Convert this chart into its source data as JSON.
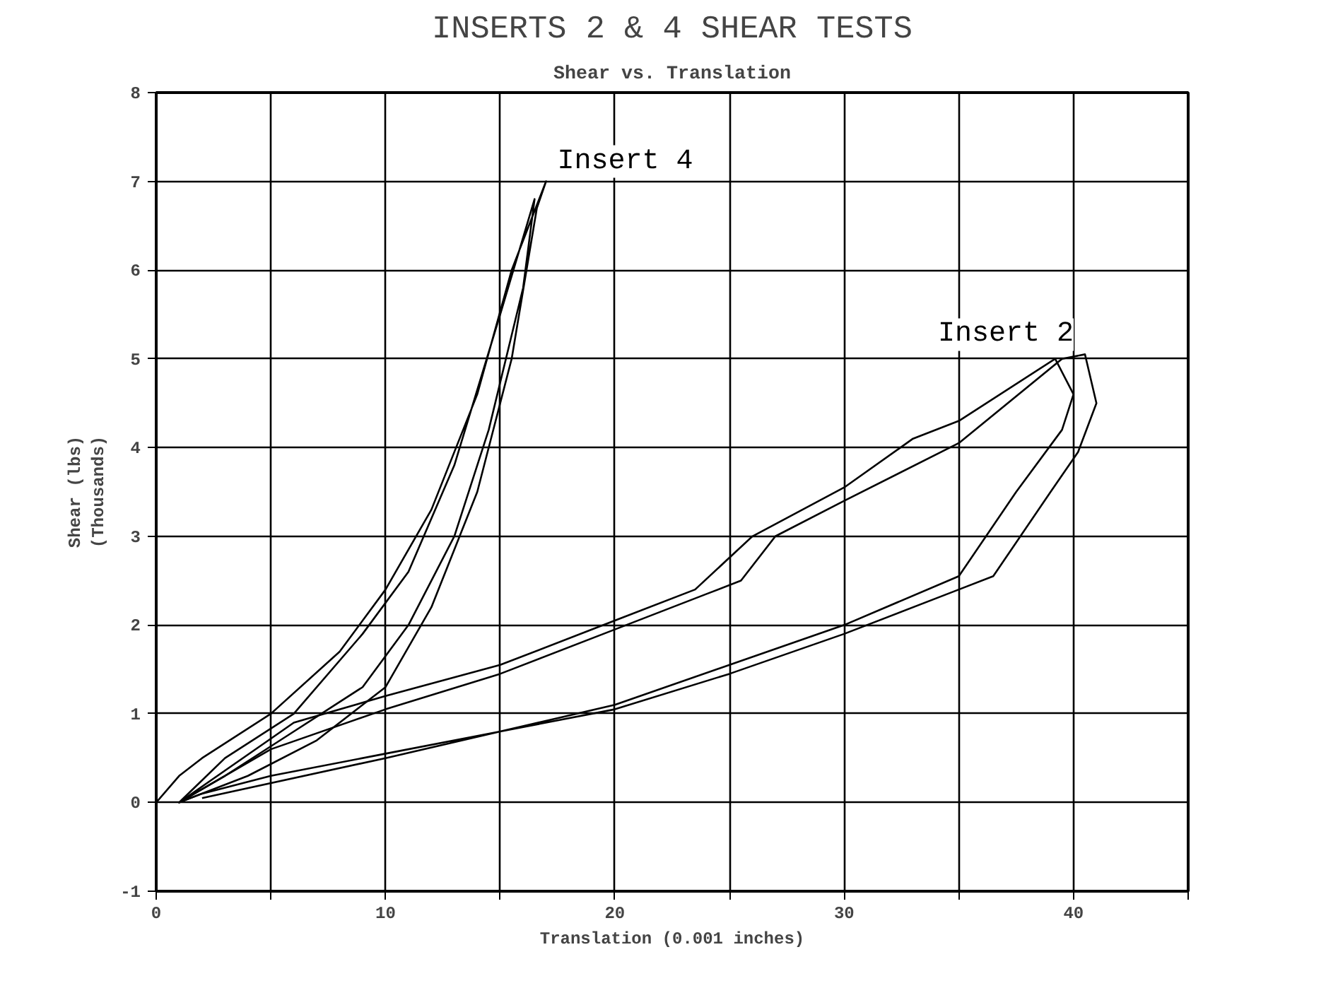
{
  "chart_data": {
    "type": "line",
    "title": "INSERTS 2 & 4 SHEAR TESTS",
    "subtitle": "Shear vs. Translation",
    "xlabel": "Translation (0.001 inches)",
    "ylabel": "Shear (lbs)\n(Thousands)",
    "xlim": [
      0,
      45
    ],
    "ylim": [
      -1,
      8
    ],
    "xticks": [
      0,
      {
        "value": 5,
        "label": null
      },
      10,
      {
        "value": 15,
        "label": null
      },
      20,
      {
        "value": 25,
        "label": null
      },
      30,
      {
        "value": 35,
        "label": null
      },
      40,
      {
        "value": 45,
        "label": null
      }
    ],
    "yticks": [
      -1,
      0,
      1,
      2,
      3,
      4,
      5,
      6,
      7,
      8
    ],
    "grid": true,
    "marker": "none",
    "line_style": "solid",
    "series": [
      {
        "name": "Insert 4",
        "color": "#000000",
        "x": [
          0,
          1,
          2,
          5,
          8,
          10,
          12,
          14,
          15.5,
          17,
          16.6,
          15.5,
          14,
          12,
          10,
          7,
          4,
          1,
          3,
          6,
          9,
          11,
          13,
          15,
          16.5,
          16,
          14.5,
          13,
          11,
          9,
          6,
          3,
          1
        ],
        "values": [
          0,
          0.3,
          0.5,
          1.0,
          1.7,
          2.4,
          3.3,
          4.6,
          6,
          7,
          6.7,
          5,
          3.5,
          2.2,
          1.3,
          0.7,
          0.3,
          0,
          0.5,
          1.0,
          1.9,
          2.6,
          3.8,
          5.5,
          6.8,
          5.8,
          4.2,
          3.0,
          2.0,
          1.3,
          0.8,
          0.3,
          0
        ]
      },
      {
        "name": "Insert 2",
        "color": "#000000",
        "x": [
          1,
          5,
          10,
          15,
          20,
          24,
          25.5,
          27,
          30,
          35,
          39.5,
          40.5,
          41,
          40.2,
          39,
          36.5,
          35,
          30,
          25,
          20,
          15,
          10,
          5,
          2,
          1,
          6,
          10,
          15,
          20,
          23.5,
          26,
          30,
          33,
          35,
          39.2,
          40,
          39.5,
          37.5,
          35,
          30,
          25,
          20,
          10,
          2
        ],
        "values": [
          0,
          0.6,
          1.05,
          1.45,
          1.95,
          2.35,
          2.5,
          3.0,
          3.4,
          4.05,
          5.0,
          5.05,
          4.5,
          3.95,
          3.5,
          2.55,
          2.4,
          1.9,
          1.45,
          1.05,
          0.8,
          0.55,
          0.3,
          0.1,
          0,
          0.9,
          1.2,
          1.55,
          2.05,
          2.4,
          3.0,
          3.55,
          4.1,
          4.3,
          5.0,
          4.6,
          4.2,
          3.5,
          2.55,
          2.0,
          1.55,
          1.1,
          0.5,
          0.05
        ]
      }
    ]
  }
}
